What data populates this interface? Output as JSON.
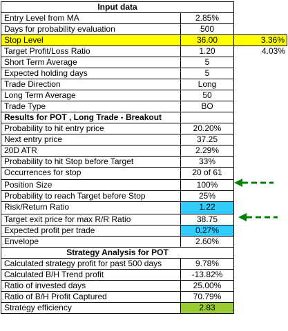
{
  "header_input": "Input data",
  "header_results": "Results for POT , Long Trade - Breakout",
  "header_strategy": "Strategy Analysis for POT",
  "input_rows": [
    {
      "label": "Entry Level from MA",
      "value": "2.85%",
      "extra": ""
    },
    {
      "label": "Days for probability evaluation",
      "value": "500",
      "extra": ""
    },
    {
      "label": "Stop Level",
      "value": "36.00",
      "extra": "3.36%"
    },
    {
      "label": "Target Profit/Loss Ratio",
      "value": "1.20",
      "extra": "4.03%"
    },
    {
      "label": "Short Term Average",
      "value": "5",
      "extra": ""
    },
    {
      "label": "Expected holding days",
      "value": "5",
      "extra": ""
    },
    {
      "label": "Trade Direction",
      "value": "Long",
      "extra": ""
    },
    {
      "label": "Long Term Average",
      "value": "50",
      "extra": ""
    },
    {
      "label": "Trade Type",
      "value": "BO",
      "extra": ""
    }
  ],
  "result_rows": [
    {
      "label": "Probability to hit entry price",
      "value": "20.20%"
    },
    {
      "label": "Next entry price",
      "value": "37.25"
    },
    {
      "label": "20D ATR",
      "value": "2.29%"
    },
    {
      "label": "Probability to hit Stop before Target",
      "value": "33%"
    },
    {
      "label": "Occurrences for stop",
      "value": "20 of 61"
    },
    {
      "label": "Position Size",
      "value": "100%"
    },
    {
      "label": "Probability to reach Target before Stop",
      "value": "25%"
    },
    {
      "label": "Risk/Return Ratio",
      "value": "1.22"
    },
    {
      "label": "Target exit price for max R/R Ratio",
      "value": "38.75"
    },
    {
      "label": "Expected profit per trade",
      "value": "0.27%"
    },
    {
      "label": "Envelope",
      "value": "2.60%"
    }
  ],
  "strategy_rows": [
    {
      "label": "Calculated strategy profit for past 500 days",
      "value": "9.78%"
    },
    {
      "label": "Calculated B/H Trend profit",
      "value": "-13.82%"
    },
    {
      "label": "Ratio of invested days",
      "value": "25.00%"
    },
    {
      "label": "Ratio of B/H Profit Captured",
      "value": "70.79%"
    },
    {
      "label": "Strategy efficiency",
      "value": "2.83"
    }
  ],
  "colors": {
    "stop_highlight": "#ffff00",
    "blue_highlight": "#33ccff",
    "green_highlight": "#99cc33",
    "arrow_color": "#008000"
  },
  "icons": [
    "dashed-arrow-left-icon",
    "dashed-arrow-left-icon"
  ]
}
